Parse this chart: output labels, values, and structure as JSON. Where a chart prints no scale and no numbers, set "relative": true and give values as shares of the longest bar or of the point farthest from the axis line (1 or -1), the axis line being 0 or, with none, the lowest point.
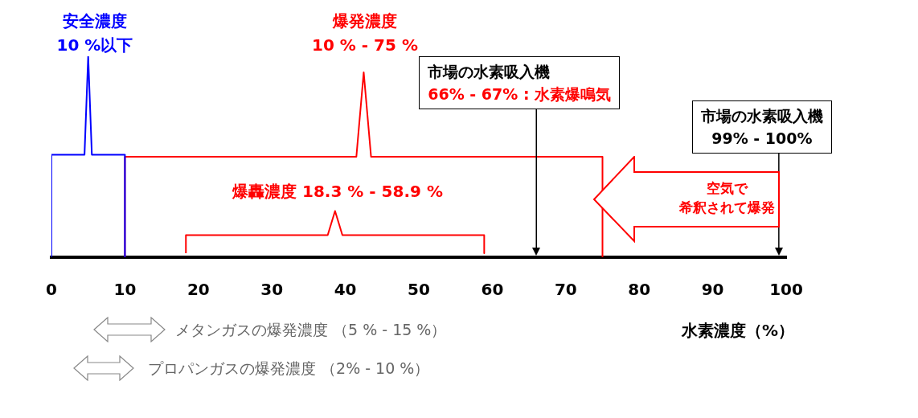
{
  "chart_data": {
    "type": "line",
    "relative": true,
    "xlabel": "水素濃度（%）",
    "xlim": [
      0,
      100
    ],
    "xticks": [
      0,
      10,
      20,
      30,
      40,
      50,
      60,
      70,
      80,
      90,
      100
    ],
    "legend": false,
    "marker": "none",
    "series": [
      {
        "color": "#0000ff",
        "x": [
          0,
          0,
          4.5,
          5,
          5.5,
          10,
          10
        ],
        "values": [
          0,
          0.51,
          0.51,
          1,
          0.51,
          0.51,
          0
        ]
      },
      {
        "color": "#ff0000",
        "x": [
          10,
          10,
          41.5,
          42.5,
          43.5,
          75,
          75
        ],
        "values": [
          0,
          0.5,
          0.5,
          0.92,
          0.5,
          0.5,
          0
        ]
      },
      {
        "color": "#ff0000",
        "x": [
          18.3,
          18.3,
          37.6,
          38.6,
          39.6,
          58.9,
          58.9
        ],
        "values": [
          0.02,
          0.11,
          0.11,
          0.23,
          0.11,
          0.11,
          0.02
        ]
      }
    ],
    "ref_lines": [
      {
        "axis": "x",
        "value": 66,
        "label": "市場の水素吸入機\n66% - 67% : 水素爆鳴気",
        "color": "#000000"
      },
      {
        "axis": "x",
        "value": 99,
        "label": "市場の水素吸入機\n99% - 100%",
        "color": "#000000"
      }
    ],
    "annotations": [
      "安全濃度",
      "10 %以下",
      "爆発濃度",
      "10 % - 75 %",
      "爆轟濃度 18.3 % - 58.9 %",
      "空気で",
      "希釈されて爆発",
      "メタンガスの爆発濃度 （5 % - 15 %）",
      "プロパンガスの爆発濃度 （2% - 10 %）"
    ]
  }
}
